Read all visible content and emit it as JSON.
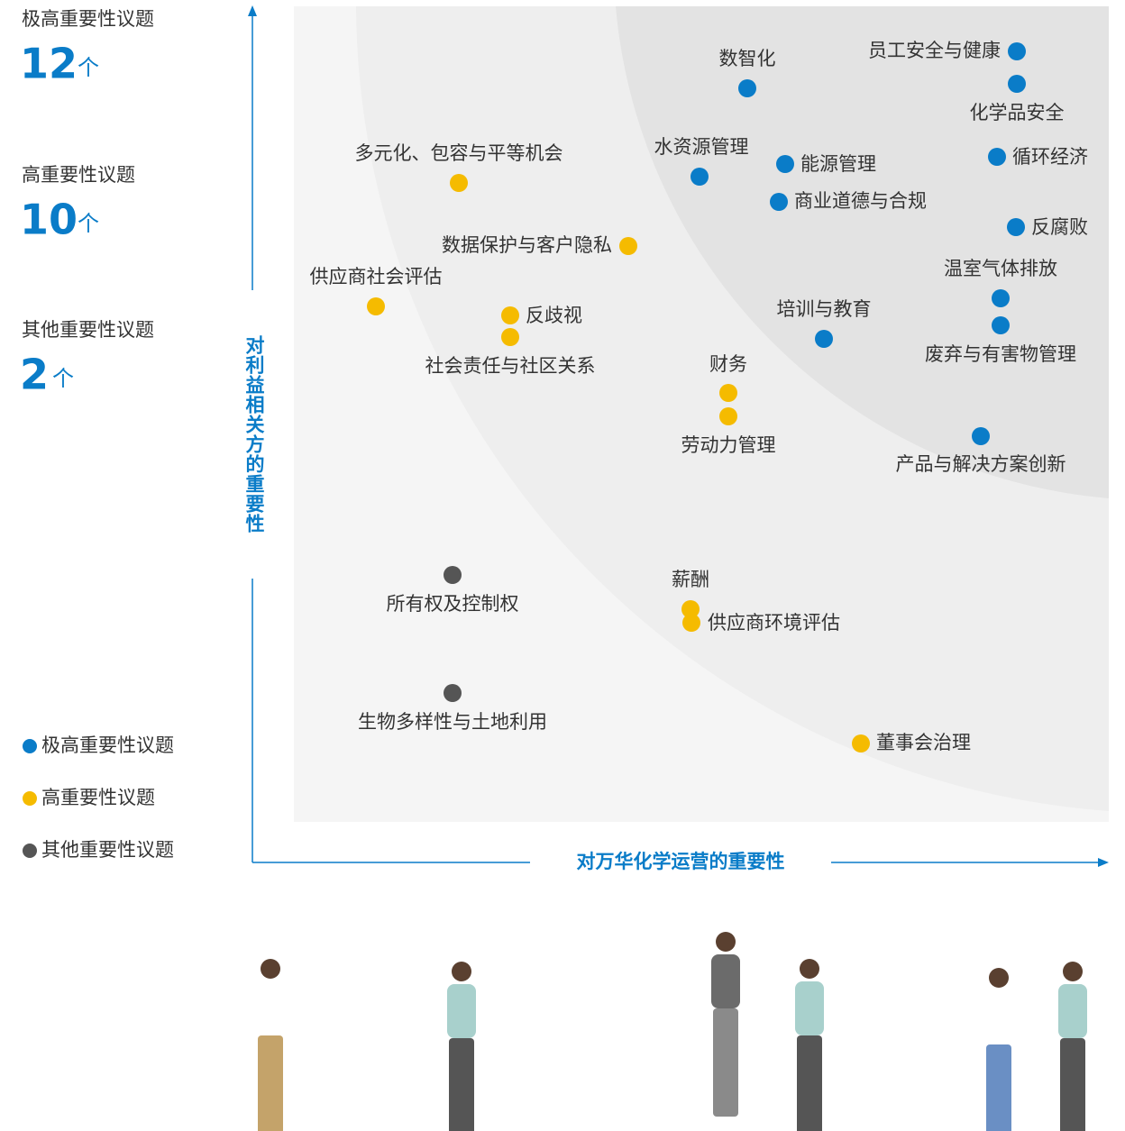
{
  "summary": [
    {
      "label": "极高重要性议题",
      "count": 12,
      "unit": "个"
    },
    {
      "label": "高重要性议题",
      "count": 10,
      "unit": "个"
    },
    {
      "label": "其他重要性议题",
      "count": 2,
      "unit": "个"
    }
  ],
  "legend": [
    {
      "label": "极高重要性议题",
      "color": "#0a7cc8"
    },
    {
      "label": "高重要性议题",
      "color": "#f5bb00"
    },
    {
      "label": "其他重要性议题",
      "color": "#555555"
    }
  ],
  "axes": {
    "y": "对利益相关方的重要性",
    "x": "对万华化学运营的重要性"
  },
  "topics": [
    {
      "label": "数智化",
      "group": 0
    },
    {
      "label": "员工安全与健康",
      "group": 0
    },
    {
      "label": "化学品安全",
      "group": 0
    },
    {
      "label": "水资源管理",
      "group": 0
    },
    {
      "label": "能源管理",
      "group": 0
    },
    {
      "label": "循环经济",
      "group": 0
    },
    {
      "label": "商业道德与合规",
      "group": 0
    },
    {
      "label": "反腐败",
      "group": 0
    },
    {
      "label": "温室气体排放",
      "group": 0
    },
    {
      "label": "培训与教育",
      "group": 0
    },
    {
      "label": "废弃与有害物管理",
      "group": 0
    },
    {
      "label": "产品与解决方案创新",
      "group": 0
    },
    {
      "label": "多元化、包容与平等机会",
      "group": 1
    },
    {
      "label": "数据保护与客户隐私",
      "group": 1
    },
    {
      "label": "供应商社会评估",
      "group": 1
    },
    {
      "label": "反歧视",
      "group": 1
    },
    {
      "label": "社会责任与社区关系",
      "group": 1
    },
    {
      "label": "财务",
      "group": 1
    },
    {
      "label": "劳动力管理",
      "group": 1
    },
    {
      "label": "薪酬",
      "group": 1
    },
    {
      "label": "供应商环境评估",
      "group": 1
    },
    {
      "label": "董事会治理",
      "group": 1
    },
    {
      "label": "所有权及控制权",
      "group": 2
    },
    {
      "label": "生物多样性与土地利用",
      "group": 2
    }
  ]
}
